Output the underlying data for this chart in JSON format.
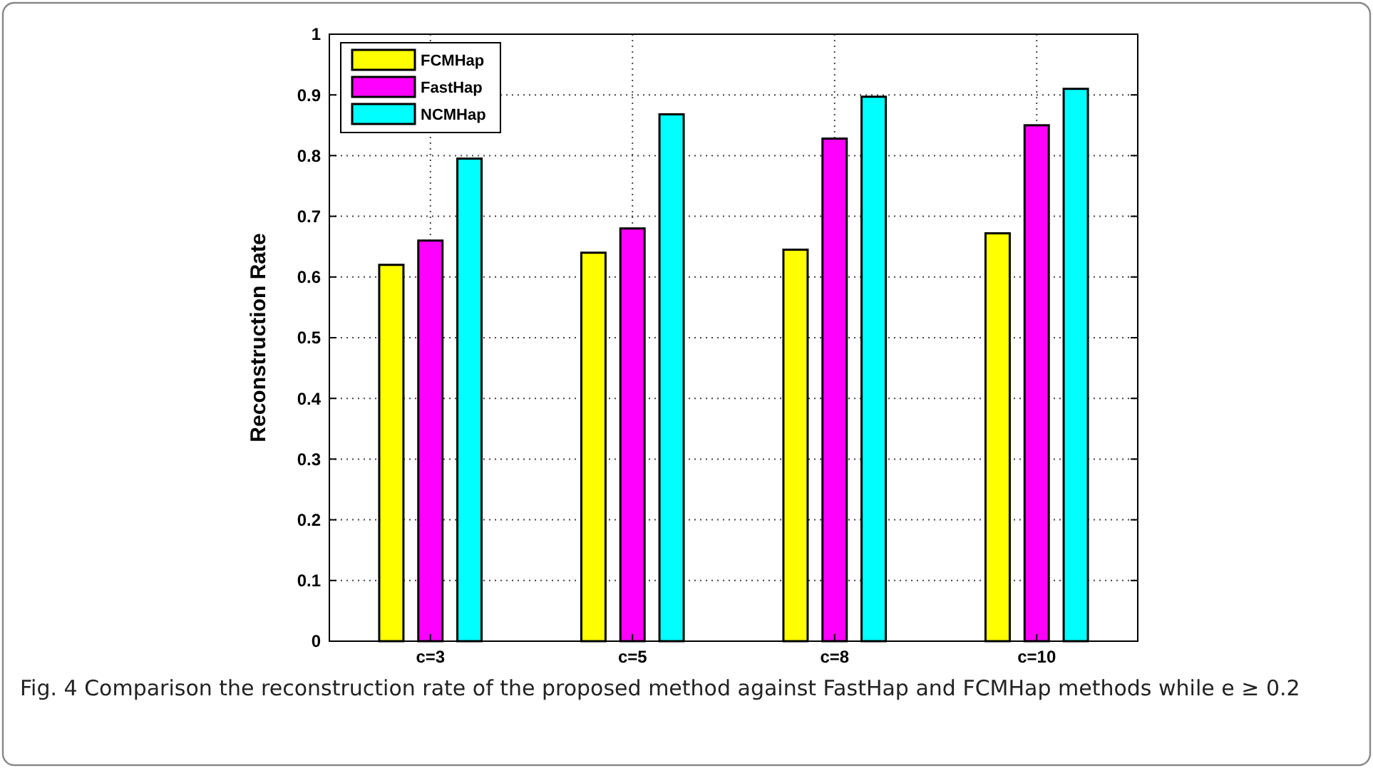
{
  "chart_data": {
    "type": "bar",
    "ylabel": "Reconstruction Rate",
    "categories": [
      "c=3",
      "c=5",
      "c=8",
      "c=10"
    ],
    "series": [
      {
        "name": "FCMHap",
        "color": "#ffff00",
        "values": [
          0.62,
          0.64,
          0.645,
          0.672
        ]
      },
      {
        "name": "FastHap",
        "color": "#ff00ff",
        "values": [
          0.66,
          0.68,
          0.828,
          0.85
        ]
      },
      {
        "name": "NCMHap",
        "color": "#00ffff",
        "values": [
          0.795,
          0.868,
          0.897,
          0.91
        ]
      }
    ],
    "ylim": [
      0,
      1
    ],
    "yticks": [
      0,
      0.1,
      0.2,
      0.3,
      0.4,
      0.5,
      0.6,
      0.7,
      0.8,
      0.9,
      1
    ],
    "grid": true,
    "legend": "top left",
    "annotations": [
      "Fig. 4  Comparison the reconstruction rate of the proposed method against FastHap and FCMHap methods while e ≥ 0.2"
    ]
  }
}
